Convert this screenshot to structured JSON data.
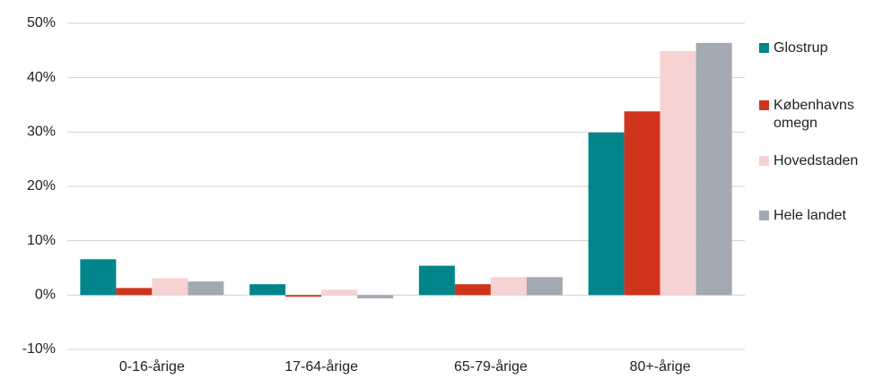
{
  "chart_data": {
    "type": "bar",
    "categories": [
      "0-16-årige",
      "17-64-årige",
      "65-79-årige",
      "80+-årige"
    ],
    "series": [
      {
        "name": "Glostrup",
        "color": "#00868a",
        "values": [
          6.6,
          2.0,
          5.4,
          29.9
        ]
      },
      {
        "name": "Københavns omegn",
        "color": "#d0341c",
        "values": [
          1.3,
          -0.3,
          2.0,
          33.8
        ]
      },
      {
        "name": "Hovedstaden",
        "color": "#f6d2d2",
        "values": [
          3.1,
          1.0,
          3.3,
          44.9
        ]
      },
      {
        "name": "Hele landet",
        "color": "#a2a9b2",
        "values": [
          2.5,
          -0.6,
          3.3,
          46.4
        ]
      }
    ],
    "ylim": [
      -10,
      50
    ],
    "yticks": [
      {
        "value": -10,
        "label": "-10%"
      },
      {
        "value": 0,
        "label": "0%"
      },
      {
        "value": 10,
        "label": "10%"
      },
      {
        "value": 20,
        "label": "20%"
      },
      {
        "value": 30,
        "label": "30%"
      },
      {
        "value": 40,
        "label": "40%"
      },
      {
        "value": 50,
        "label": "50%"
      }
    ],
    "grid": true,
    "legend": "right"
  }
}
